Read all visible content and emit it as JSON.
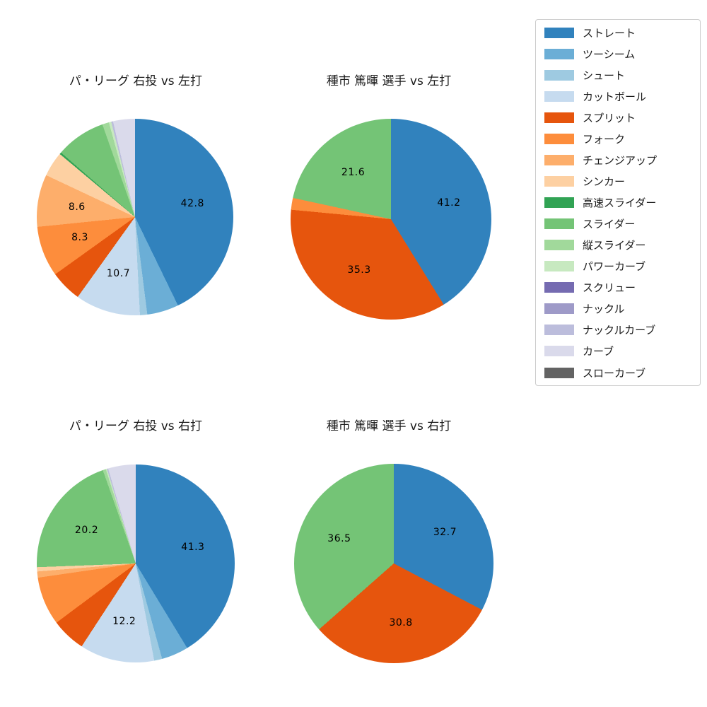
{
  "style": {
    "background": "#ffffff",
    "text_color": "#1a1a1a",
    "value_label_color": "#000000",
    "legend_border_color": "#cccccc"
  },
  "palette": {
    "ストレート": "#3182bd",
    "ツーシーム": "#6baed6",
    "シュート": "#9ecae1",
    "カットボール": "#c6dbef",
    "スプリット": "#e6550d",
    "フォーク": "#fd8d3c",
    "チェンジアップ": "#fdae6b",
    "シンカー": "#fdd0a2",
    "高速スライダー": "#31a354",
    "スライダー": "#74c476",
    "縦スライダー": "#a1d99b",
    "パワーカーブ": "#c7e9c0",
    "スクリュー": "#756bb1",
    "ナックル": "#9e9ac8",
    "ナックルカーブ": "#bcbddc",
    "カーブ": "#dadaeb",
    "スローカーブ": "#636363"
  },
  "legend": {
    "position": "top-right",
    "items": [
      "ストレート",
      "ツーシーム",
      "シュート",
      "カットボール",
      "スプリット",
      "フォーク",
      "チェンジアップ",
      "シンカー",
      "高速スライダー",
      "スライダー",
      "縦スライダー",
      "パワーカーブ",
      "スクリュー",
      "ナックル",
      "ナックルカーブ",
      "カーブ",
      "スローカーブ"
    ]
  },
  "chart_data": [
    {
      "type": "pie",
      "title": "パ・リーグ 右投 vs 左打",
      "start_angle_deg": 90,
      "direction": "clockwise",
      "pct_distance": 0.6,
      "visible_value_labels": [
        "42.8",
        "10.7",
        "8.3",
        "8.6"
      ],
      "slices": [
        {
          "label": "ストレート",
          "value": 42.8,
          "labeled": true
        },
        {
          "label": "ツーシーム",
          "value": 5.2,
          "labeled": false
        },
        {
          "label": "シュート",
          "value": 1.2,
          "labeled": false
        },
        {
          "label": "カットボール",
          "value": 10.7,
          "labeled": true
        },
        {
          "label": "スプリット",
          "value": 5.2,
          "labeled": false
        },
        {
          "label": "フォーク",
          "value": 8.3,
          "labeled": true
        },
        {
          "label": "チェンジアップ",
          "value": 8.6,
          "labeled": true
        },
        {
          "label": "シンカー",
          "value": 4.1,
          "labeled": false
        },
        {
          "label": "高速スライダー",
          "value": 0.3,
          "labeled": false
        },
        {
          "label": "スライダー",
          "value": 8.2,
          "labeled": false
        },
        {
          "label": "縦スライダー",
          "value": 1.1,
          "labeled": false
        },
        {
          "label": "パワーカーブ",
          "value": 0.4,
          "labeled": false
        },
        {
          "label": "ナックルカーブ",
          "value": 0.3,
          "labeled": false
        },
        {
          "label": "カーブ",
          "value": 3.6,
          "labeled": false
        }
      ]
    },
    {
      "type": "pie",
      "title": "種市 篤暉 選手 vs 左打",
      "start_angle_deg": 90,
      "direction": "clockwise",
      "pct_distance": 0.6,
      "visible_value_labels": [
        "41.2",
        "35.3",
        "21.6"
      ],
      "slices": [
        {
          "label": "ストレート",
          "value": 41.2,
          "labeled": true
        },
        {
          "label": "スプリット",
          "value": 35.3,
          "labeled": true
        },
        {
          "label": "フォーク",
          "value": 1.9,
          "labeled": false
        },
        {
          "label": "スライダー",
          "value": 21.6,
          "labeled": true
        }
      ]
    },
    {
      "type": "pie",
      "title": "パ・リーグ 右投 vs 右打",
      "start_angle_deg": 90,
      "direction": "clockwise",
      "pct_distance": 0.6,
      "visible_value_labels": [
        "41.3",
        "12.2",
        "20.2"
      ],
      "slices": [
        {
          "label": "ストレート",
          "value": 41.3,
          "labeled": true
        },
        {
          "label": "ツーシーム",
          "value": 4.4,
          "labeled": false
        },
        {
          "label": "シュート",
          "value": 1.3,
          "labeled": false
        },
        {
          "label": "カットボール",
          "value": 12.2,
          "labeled": true
        },
        {
          "label": "スプリット",
          "value": 5.6,
          "labeled": false
        },
        {
          "label": "フォーク",
          "value": 7.9,
          "labeled": false
        },
        {
          "label": "チェンジアップ",
          "value": 1.0,
          "labeled": false
        },
        {
          "label": "シンカー",
          "value": 0.7,
          "labeled": false
        },
        {
          "label": "スライダー",
          "value": 20.2,
          "labeled": true
        },
        {
          "label": "縦スライダー",
          "value": 0.5,
          "labeled": false
        },
        {
          "label": "パワーカーブ",
          "value": 0.2,
          "labeled": false
        },
        {
          "label": "ナックルカーブ",
          "value": 0.2,
          "labeled": false
        },
        {
          "label": "カーブ",
          "value": 4.5,
          "labeled": false
        }
      ]
    },
    {
      "type": "pie",
      "title": "種市 篤暉 選手 vs 右打",
      "start_angle_deg": 90,
      "direction": "clockwise",
      "pct_distance": 0.6,
      "visible_value_labels": [
        "32.7",
        "30.8",
        "36.5"
      ],
      "slices": [
        {
          "label": "ストレート",
          "value": 32.7,
          "labeled": true
        },
        {
          "label": "スプリット",
          "value": 30.8,
          "labeled": true
        },
        {
          "label": "スライダー",
          "value": 36.5,
          "labeled": true
        }
      ]
    }
  ]
}
